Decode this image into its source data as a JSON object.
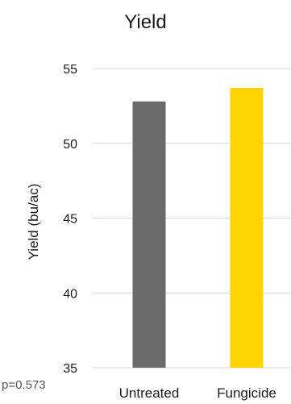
{
  "chart_data": {
    "type": "bar",
    "title": "Yield",
    "xlabel": "",
    "ylabel": "Yield (bu/ac)",
    "categories": [
      "Untreated",
      "Fungicide"
    ],
    "values": [
      52.8,
      53.7
    ],
    "colors": [
      "#6b6b6b",
      "#ffd400"
    ],
    "ylim": [
      35,
      55
    ],
    "yticks": [
      55,
      50,
      45,
      40,
      35
    ],
    "grid": true,
    "legend": "none",
    "annotation": "p=0.573"
  }
}
